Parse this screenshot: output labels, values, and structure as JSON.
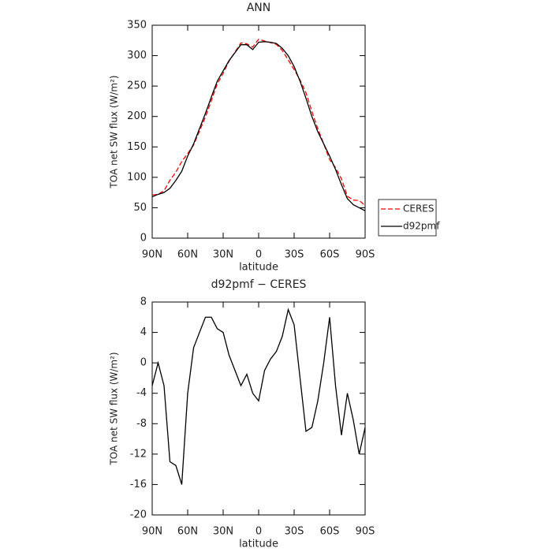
{
  "chart_data": [
    {
      "type": "line",
      "title": "ANN",
      "xlabel": "latitude",
      "ylabel": "TOA net SW flux (W/m²)",
      "x": [
        90,
        85,
        80,
        75,
        70,
        65,
        60,
        55,
        50,
        45,
        40,
        35,
        30,
        25,
        20,
        15,
        10,
        5,
        0,
        -5,
        -10,
        -15,
        -20,
        -25,
        -30,
        -35,
        -40,
        -45,
        -50,
        -55,
        -60,
        -65,
        -70,
        -75,
        -80,
        -85,
        -90
      ],
      "xlim": [
        90,
        -90
      ],
      "xticks": [
        {
          "value": 90,
          "label": "90N"
        },
        {
          "value": 60,
          "label": "60N"
        },
        {
          "value": 30,
          "label": "30N"
        },
        0,
        {
          "value": -30,
          "label": "30S"
        },
        {
          "value": -60,
          "label": "60S"
        },
        {
          "value": -90,
          "label": "90S"
        }
      ],
      "ylim": [
        0,
        350
      ],
      "yticks": [
        0,
        50,
        100,
        150,
        200,
        250,
        300,
        350
      ],
      "legend": "right",
      "series": [
        {
          "name": "CERES",
          "color": "#ff0000",
          "linestyle": "dashed",
          "values": [
            71,
            72,
            78,
            95,
            108.5,
            126,
            139,
            153,
            176,
            199,
            226,
            253.5,
            271,
            291,
            306,
            321,
            319.5,
            314,
            327,
            324,
            321.5,
            318.5,
            308.5,
            293,
            277,
            260,
            239,
            208.5,
            180,
            155,
            129,
            116,
            97.5,
            69,
            62.5,
            62,
            53.5
          ]
        },
        {
          "name": "d92pmf",
          "color": "#000000",
          "linestyle": "solid",
          "values": [
            68,
            72,
            75,
            82,
            95,
            110,
            135,
            155,
            180,
            205,
            232,
            258,
            275,
            292,
            305,
            318,
            318,
            310,
            322,
            323,
            322,
            320,
            312,
            300,
            282,
            258,
            230,
            200,
            175,
            155,
            135,
            113,
            88,
            65,
            55,
            50,
            45
          ]
        }
      ]
    },
    {
      "type": "line",
      "title": "d92pmf − CERES",
      "xlabel": "latitude",
      "ylabel": "TOA net SW flux (W/m²)",
      "x": [
        90,
        85,
        80,
        75,
        70,
        65,
        60,
        55,
        50,
        45,
        40,
        35,
        30,
        25,
        20,
        15,
        10,
        5,
        0,
        -5,
        -10,
        -15,
        -20,
        -25,
        -30,
        -35,
        -40,
        -45,
        -50,
        -55,
        -60,
        -65,
        -70,
        -75,
        -80,
        -85,
        -90
      ],
      "xlim": [
        90,
        -90
      ],
      "xticks": [
        {
          "value": 90,
          "label": "90N"
        },
        {
          "value": 60,
          "label": "60N"
        },
        {
          "value": 30,
          "label": "30N"
        },
        0,
        {
          "value": -30,
          "label": "30S"
        },
        {
          "value": -60,
          "label": "60S"
        },
        {
          "value": -90,
          "label": "90S"
        }
      ],
      "ylim": [
        -20,
        8
      ],
      "yticks": [
        -20,
        -16,
        -12,
        -8,
        -4,
        0,
        4,
        8
      ],
      "series": [
        {
          "color": "#000000",
          "linestyle": "solid",
          "values": [
            -3,
            0,
            -3,
            -13,
            -13.5,
            -16,
            -4,
            2,
            4,
            6,
            6,
            4.5,
            4,
            1,
            -1,
            -3,
            -1.5,
            -4,
            -5,
            -1,
            0.5,
            1.5,
            3.5,
            7,
            5,
            -2,
            -9,
            -8.5,
            -5,
            0,
            6,
            -3,
            -9.5,
            -4,
            -7.5,
            -12,
            -8.5
          ]
        }
      ]
    }
  ]
}
